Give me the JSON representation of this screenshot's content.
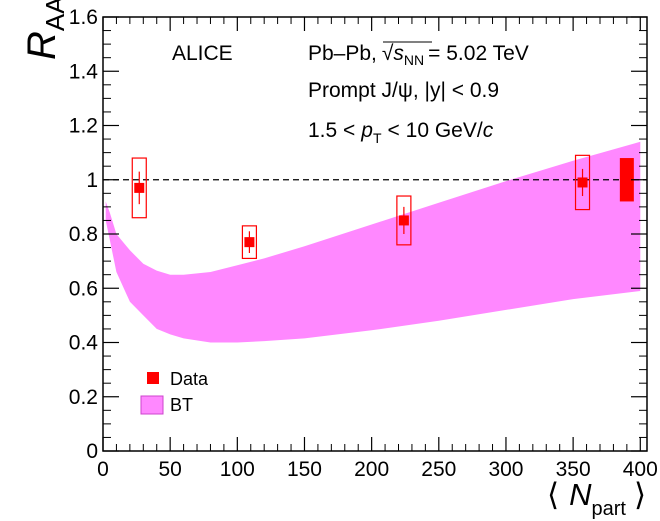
{
  "chart_data": {
    "type": "scatter",
    "ylabel": {
      "main": "R",
      "sub": "AA"
    },
    "xlabel": {
      "open": "⟨",
      "main": "N",
      "sub": "part",
      "close": "⟩"
    },
    "xlim": [
      0,
      405
    ],
    "ylim": [
      0,
      1.6
    ],
    "x_ticks": [
      0,
      50,
      100,
      150,
      200,
      250,
      300,
      350,
      400
    ],
    "y_ticks": [
      0,
      0.2,
      0.4,
      0.6,
      0.8,
      1,
      1.2,
      1.4,
      1.6
    ],
    "y_tick_labels": [
      "0",
      "0.2",
      "0.4",
      "0.6",
      "0.8",
      "1",
      "1.2",
      "1.4",
      "1.6"
    ],
    "reference_line_y": 1,
    "annotations": {
      "experiment": "ALICE",
      "system": "Pb–Pb,",
      "sqrt": "√",
      "s": "s",
      "s_sub": "NN",
      "energy": "= 5.02 TeV",
      "particle": "Prompt J/ψ, |y| < 0.9",
      "pt_pre": "1.5 <",
      "pt_p": "p",
      "pt_sub": "T",
      "pt_post": "< 10 GeV/",
      "pt_c": "c"
    },
    "series": [
      {
        "name": "Data",
        "color": "#ff0000",
        "points": [
          {
            "x": 27,
            "y": 0.97,
            "stat": 0.06,
            "sys": 0.11
          },
          {
            "x": 109,
            "y": 0.77,
            "stat": 0.04,
            "sys": 0.06
          },
          {
            "x": 224,
            "y": 0.85,
            "stat": 0.05,
            "sys": 0.09
          },
          {
            "x": 357,
            "y": 0.99,
            "stat": 0.05,
            "sys": 0.1
          }
        ],
        "global_uncertainty": {
          "x": 390,
          "low": 0.92,
          "high": 1.08
        }
      },
      {
        "name": "BT",
        "type": "band",
        "color": "#ff88ff",
        "x": [
          2,
          5,
          10,
          20,
          30,
          40,
          50,
          60,
          80,
          100,
          120,
          150,
          200,
          250,
          300,
          350,
          400
        ],
        "upper": [
          0.92,
          0.88,
          0.8,
          0.74,
          0.69,
          0.665,
          0.65,
          0.65,
          0.66,
          0.685,
          0.71,
          0.755,
          0.835,
          0.915,
          0.995,
          1.07,
          1.14
        ],
        "lower": [
          0.85,
          0.78,
          0.66,
          0.55,
          0.5,
          0.45,
          0.43,
          0.415,
          0.4,
          0.4,
          0.405,
          0.415,
          0.445,
          0.48,
          0.52,
          0.56,
          0.59
        ]
      }
    ],
    "legend": [
      {
        "label": "Data",
        "marker": "square"
      },
      {
        "label": "BT",
        "marker": "box"
      }
    ]
  }
}
